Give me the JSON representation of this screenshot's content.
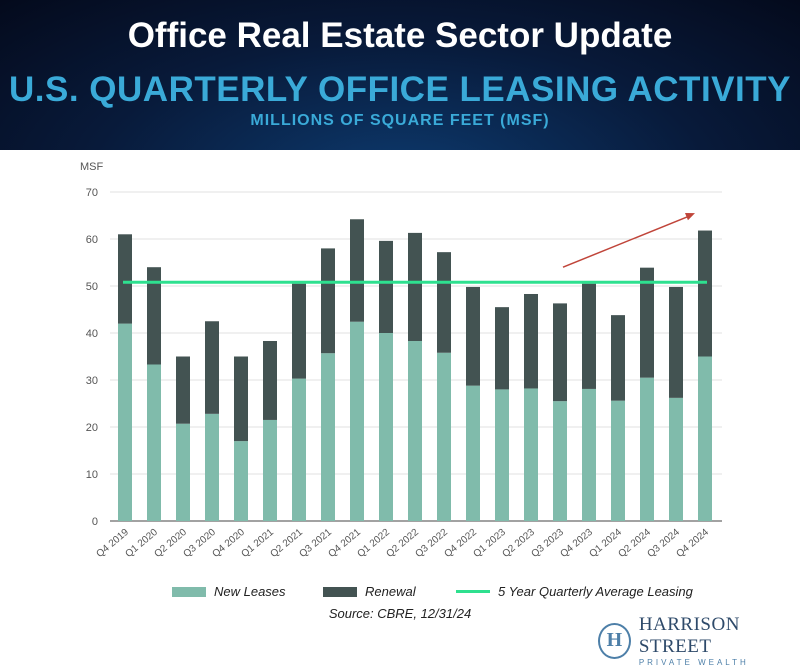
{
  "header": {
    "title": "Office Real Estate Sector Update",
    "subtitle": "U.S. QUARTERLY OFFICE LEASING ACTIVITY",
    "units": "MILLIONS OF SQUARE FEET (MSF)"
  },
  "chart_data": {
    "type": "bar",
    "stacked": true,
    "ylabel": "MSF",
    "ylim": [
      0,
      70
    ],
    "yticks": [
      0,
      10,
      20,
      30,
      40,
      50,
      60,
      70
    ],
    "grid": true,
    "legend_placement": "bottom",
    "categories": [
      "Q4 2019",
      "Q1 2020",
      "Q2 2020",
      "Q3 2020",
      "Q4 2020",
      "Q1 2021",
      "Q2 2021",
      "Q3 2021",
      "Q4 2021",
      "Q1 2022",
      "Q2 2022",
      "Q3 2022",
      "Q4 2022",
      "Q1 2023",
      "Q2 2023",
      "Q3 2023",
      "Q4 2023",
      "Q1 2024",
      "Q2 2024",
      "Q3 2024",
      "Q4 2024"
    ],
    "series": [
      {
        "name": "New Leases",
        "color": "#80bbab",
        "values": [
          42,
          33.3,
          20.7,
          22.8,
          17,
          21.5,
          30.3,
          35.7,
          42.4,
          40,
          38.3,
          35.8,
          28.8,
          28,
          28.2,
          25.5,
          28.1,
          25.6,
          30.5,
          26.2,
          35
        ]
      },
      {
        "name": "Renewal",
        "color": "#435352",
        "values": [
          19,
          20.7,
          14.3,
          19.7,
          18,
          16.8,
          20.2,
          22.3,
          21.8,
          19.6,
          23,
          21.4,
          21,
          17.5,
          20.1,
          20.8,
          22.4,
          18.2,
          23.4,
          23.6,
          26.8
        ]
      }
    ],
    "average_line": {
      "name": "5 Year Quarterly Average Leasing",
      "value": 50.8,
      "color": "#2ee08f"
    },
    "annotation_arrow": {
      "color": "#c0453a",
      "from": {
        "x": "Q3 2023",
        "y": 54
      },
      "to": {
        "x": "Q4 2024",
        "y": 65.5
      }
    }
  },
  "source": "Source: CBRE, 12/31/24",
  "logo": {
    "name": "HARRISON STREET",
    "tagline": "PRIVATE WEALTH"
  }
}
